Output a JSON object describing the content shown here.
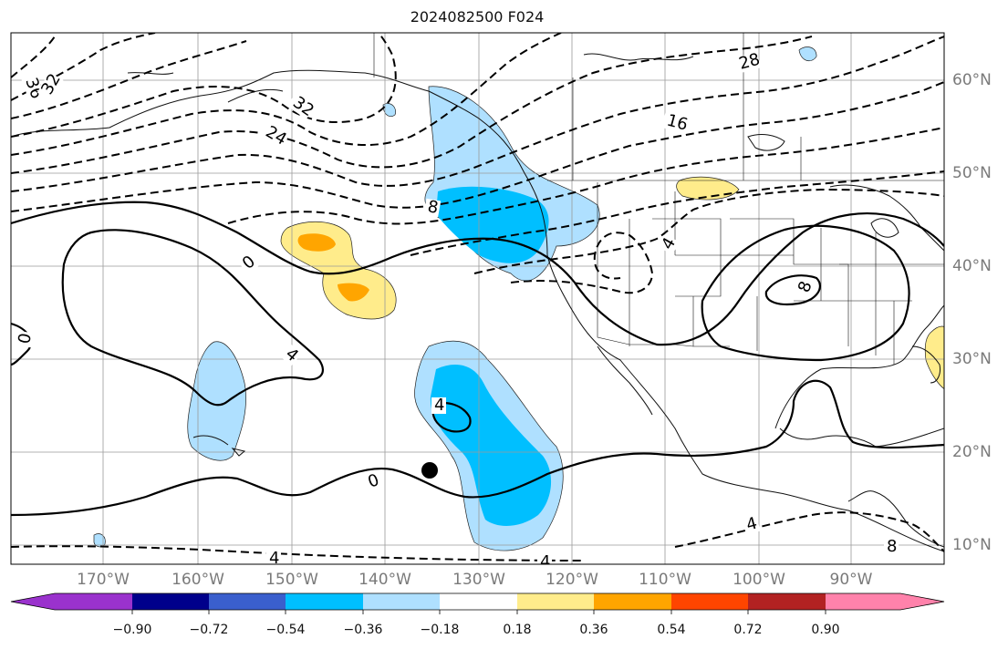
{
  "title": "2024082500 F024",
  "lon_ticks": [
    "170°W",
    "160°W",
    "150°W",
    "140°W",
    "130°W",
    "120°W",
    "110°W",
    "100°W",
    "90°W"
  ],
  "lat_ticks": [
    "60°N",
    "50°N",
    "40°N",
    "30°N",
    "20°N",
    "10°N"
  ],
  "contour_labels": {
    "neg36": "36",
    "neg32a": "32",
    "neg32b": "32",
    "neg24": "24",
    "neg28": "28",
    "neg16": "16",
    "neg8": "8",
    "neg4a": "4",
    "neg4b": "4",
    "neg4c": "4",
    "neg4d": "4",
    "neg8b": "8",
    "zero_a": "0",
    "zero_b": "0",
    "zero_c": "0",
    "pos4a": "4",
    "pos4b": "4",
    "pos8": "8"
  },
  "colorbar": {
    "colors": [
      "#9a32cd",
      "#00008b",
      "#3a5fcd",
      "#00bfff",
      "#afe0ff",
      "#ffffff",
      "#ffec8b",
      "#ffa500",
      "#ff4500",
      "#b22222",
      "#ff82ab"
    ],
    "labels": [
      "−0.90",
      "−0.72",
      "−0.54",
      "−0.36",
      "−0.18",
      "0.18",
      "0.36",
      "0.54",
      "0.72",
      "0.90"
    ]
  },
  "marker": "black-dot"
}
